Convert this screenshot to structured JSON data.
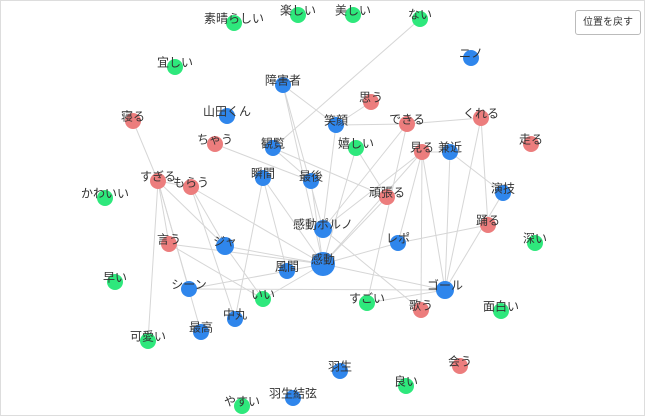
{
  "button": "位置を戻す",
  "nodes": [
    {
      "label": "素晴らしい",
      "color": "#2ee87c"
    },
    {
      "label": "楽しい",
      "color": "#2ee87c"
    },
    {
      "label": "美しい",
      "color": "#2ee87c"
    },
    {
      "label": "ない",
      "color": "#2ee87c"
    },
    {
      "label": "宜しい",
      "color": "#2ee87c"
    },
    {
      "label": "ニノ",
      "color": "#2f86ec"
    },
    {
      "label": "障害者",
      "color": "#2f86ec"
    },
    {
      "label": "山田くん",
      "color": "#2f86ec"
    },
    {
      "label": "思う",
      "color": "#ec7d7d"
    },
    {
      "label": "寝る",
      "color": "#ec7d7d"
    },
    {
      "label": "笑顔",
      "color": "#2f86ec"
    },
    {
      "label": "できる",
      "color": "#ec7d7d"
    },
    {
      "label": "くれる",
      "color": "#ec7d7d"
    },
    {
      "label": "ちゃう",
      "color": "#ec7d7d"
    },
    {
      "label": "観覧",
      "color": "#2f86ec"
    },
    {
      "label": "嬉しい",
      "color": "#2ee87c"
    },
    {
      "label": "見る",
      "color": "#ec7d7d"
    },
    {
      "label": "兼近",
      "color": "#2f86ec"
    },
    {
      "label": "走る",
      "color": "#ec7d7d"
    },
    {
      "label": "瞬間",
      "color": "#2f86ec"
    },
    {
      "label": "最後",
      "color": "#2f86ec"
    },
    {
      "label": "すぎる",
      "color": "#ec7d7d"
    },
    {
      "label": "もらう",
      "color": "#ec7d7d"
    },
    {
      "label": "かわいい",
      "color": "#2ee87c"
    },
    {
      "label": "頑張る",
      "color": "#ec7d7d"
    },
    {
      "label": "演技",
      "color": "#2f86ec"
    },
    {
      "label": "感動ポルノ",
      "color": "#2f86ec"
    },
    {
      "label": "言う",
      "color": "#ec7d7d"
    },
    {
      "label": "ジャ",
      "color": "#2f86ec"
    },
    {
      "label": "レポ",
      "color": "#2f86ec"
    },
    {
      "label": "踊る",
      "color": "#ec7d7d"
    },
    {
      "label": "深い",
      "color": "#2ee87c"
    },
    {
      "label": "感動",
      "color": "#2f86ec"
    },
    {
      "label": "風間",
      "color": "#2f86ec"
    },
    {
      "label": "早い",
      "color": "#2ee87c"
    },
    {
      "label": "シーン",
      "color": "#2f86ec"
    },
    {
      "label": "ゴール",
      "color": "#2f86ec"
    },
    {
      "label": "いい",
      "color": "#2ee87c"
    },
    {
      "label": "すごい",
      "color": "#2ee87c"
    },
    {
      "label": "歌う",
      "color": "#ec7d7d"
    },
    {
      "label": "面白い",
      "color": "#2ee87c"
    },
    {
      "label": "中丸",
      "color": "#2f86ec"
    },
    {
      "label": "最高",
      "color": "#2f86ec"
    },
    {
      "label": "可愛い",
      "color": "#2ee87c"
    },
    {
      "label": "会う",
      "color": "#ec7d7d"
    },
    {
      "label": "羽生",
      "color": "#2f86ec"
    },
    {
      "label": "良い",
      "color": "#2ee87c"
    },
    {
      "label": "羽生結弦",
      "color": "#2f86ec"
    },
    {
      "label": "やすい",
      "color": "#2ee87c"
    }
  ]
}
